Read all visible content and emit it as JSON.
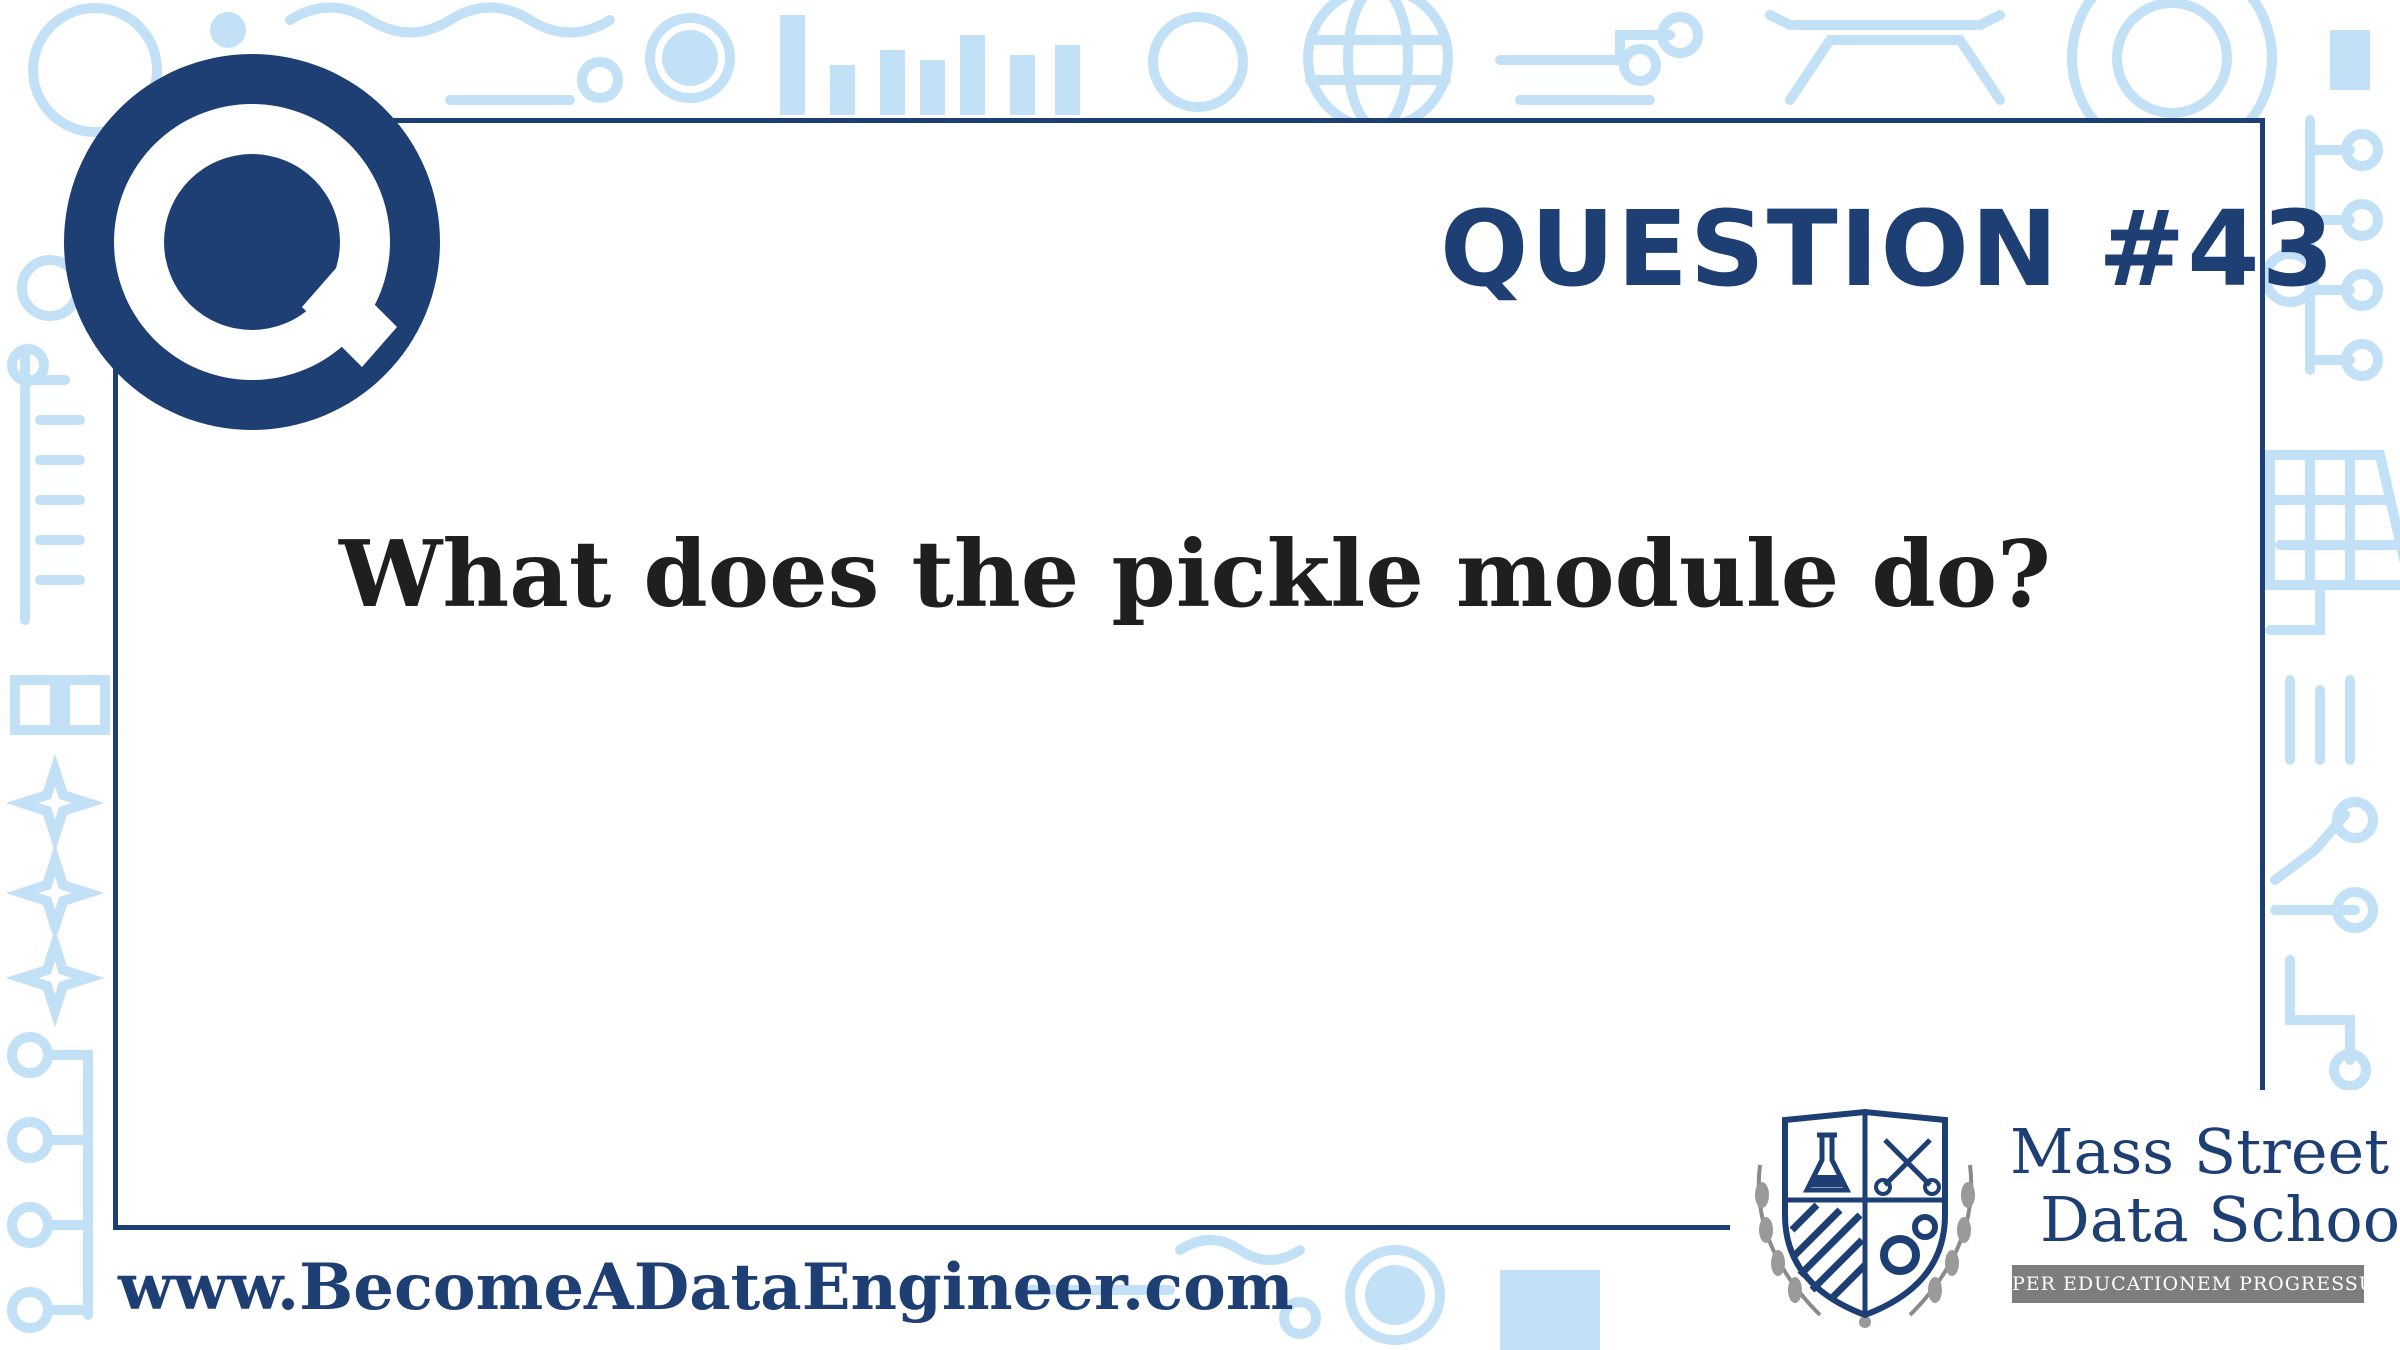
{
  "badge": {
    "letter": "Q"
  },
  "header": {
    "question_number": "QUESTION #43"
  },
  "main": {
    "question": "What does the pickle module do?"
  },
  "footer": {
    "website": "www.BecomeADataEngineer.com"
  },
  "logo": {
    "line1": "Mass Street",
    "line2": "Data School",
    "motto": "PER EDUCATIONEM PROGRESSUS"
  },
  "colors": {
    "navy": "#1e3f74",
    "light_blue": "#bfe0f7",
    "text": "#1f1f1f"
  }
}
